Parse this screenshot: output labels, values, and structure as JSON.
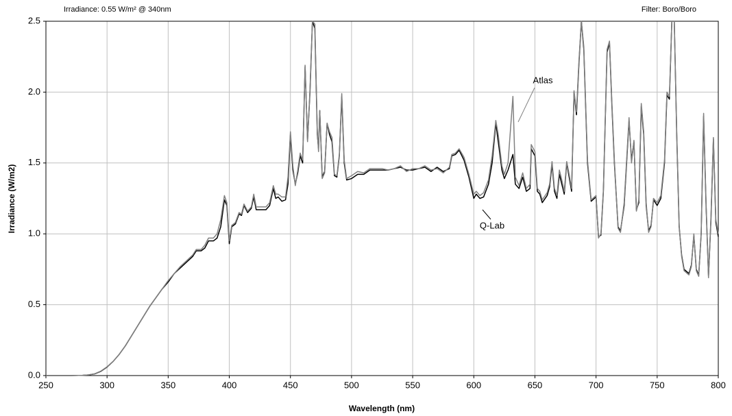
{
  "chart_data": {
    "type": "line",
    "annotations": [
      "Irradiance: 0.55 W/m² @ 340nm",
      "Filter: Boro/Boro"
    ],
    "xlabel": "Wavelength (nm)",
    "ylabel": "Irradiance (W/m2)",
    "xlim": [
      250,
      800
    ],
    "ylim": [
      0,
      2.5
    ],
    "xticks": [
      250,
      300,
      350,
      400,
      450,
      500,
      550,
      600,
      650,
      700,
      750,
      800
    ],
    "yticks": [
      {
        "value": 0,
        "label": "0.0"
      },
      0.5,
      {
        "value": 1,
        "label": "1.0"
      },
      1.5,
      {
        "value": 2,
        "label": "2.0"
      },
      2.5
    ],
    "grid": true,
    "x": [
      250,
      260,
      270,
      280,
      285,
      290,
      295,
      300,
      305,
      310,
      315,
      320,
      325,
      330,
      335,
      340,
      345,
      350,
      355,
      360,
      365,
      370,
      373,
      377,
      380,
      383,
      387,
      390,
      393,
      396,
      398,
      400,
      402,
      405,
      408,
      410,
      412,
      415,
      418,
      420,
      422,
      425,
      430,
      433,
      436,
      438,
      440,
      443,
      446,
      448,
      450,
      452,
      454,
      456,
      458,
      460,
      462,
      464,
      466,
      468,
      470,
      472,
      473,
      474,
      476,
      478,
      480,
      482,
      484,
      486,
      488,
      490,
      492,
      494,
      496,
      500,
      505,
      510,
      515,
      520,
      525,
      530,
      535,
      540,
      545,
      550,
      555,
      560,
      565,
      570,
      575,
      580,
      582,
      585,
      588,
      592,
      596,
      600,
      602,
      605,
      608,
      612,
      615,
      618,
      620,
      623,
      625,
      628,
      632,
      634,
      637,
      640,
      643,
      646,
      647,
      650,
      652,
      654,
      656,
      660,
      662,
      664,
      666,
      668,
      670,
      672,
      674,
      676,
      678,
      680,
      682,
      684,
      686,
      688,
      690,
      693,
      696,
      700,
      702,
      704,
      706,
      709,
      711,
      713,
      715,
      718,
      720,
      723,
      727,
      729,
      731,
      733,
      735,
      737,
      739,
      741,
      743,
      745,
      747,
      750,
      753,
      756,
      758,
      760,
      762,
      764,
      766,
      768,
      770,
      772,
      776,
      778,
      780,
      782,
      784,
      786,
      788,
      790,
      792,
      794,
      796,
      798,
      800
    ],
    "series": [
      {
        "name": "Q-Lab",
        "color": "#000000",
        "values": [
          0,
          0,
          0,
          0.002,
          0.005,
          0.012,
          0.03,
          0.06,
          0.1,
          0.15,
          0.21,
          0.28,
          0.35,
          0.42,
          0.49,
          0.55,
          0.61,
          0.66,
          0.72,
          0.76,
          0.8,
          0.84,
          0.88,
          0.88,
          0.9,
          0.95,
          0.95,
          0.97,
          1.05,
          1.24,
          1.2,
          0.93,
          1.05,
          1.07,
          1.14,
          1.13,
          1.2,
          1.15,
          1.18,
          1.26,
          1.17,
          1.17,
          1.17,
          1.2,
          1.32,
          1.25,
          1.26,
          1.23,
          1.24,
          1.35,
          1.7,
          1.45,
          1.35,
          1.43,
          1.55,
          1.5,
          2.18,
          1.66,
          2.0,
          2.5,
          2.45,
          1.7,
          1.6,
          1.87,
          1.4,
          1.44,
          1.78,
          1.7,
          1.65,
          1.41,
          1.4,
          1.55,
          1.97,
          1.5,
          1.38,
          1.39,
          1.42,
          1.42,
          1.45,
          1.45,
          1.45,
          1.45,
          1.46,
          1.47,
          1.45,
          1.45,
          1.46,
          1.47,
          1.44,
          1.47,
          1.44,
          1.46,
          1.55,
          1.56,
          1.59,
          1.52,
          1.4,
          1.25,
          1.28,
          1.25,
          1.26,
          1.35,
          1.5,
          1.78,
          1.65,
          1.45,
          1.39,
          1.45,
          1.56,
          1.35,
          1.32,
          1.4,
          1.3,
          1.32,
          1.6,
          1.55,
          1.3,
          1.28,
          1.22,
          1.27,
          1.33,
          1.49,
          1.3,
          1.25,
          1.42,
          1.35,
          1.28,
          1.5,
          1.4,
          1.3,
          2.0,
          1.84,
          2.2,
          2.5,
          2.3,
          1.5,
          1.23,
          1.26,
          0.98,
          0.99,
          1.3,
          2.28,
          2.35,
          1.9,
          1.5,
          1.05,
          1.02,
          1.2,
          1.8,
          1.52,
          1.65,
          1.17,
          1.22,
          1.9,
          1.7,
          1.2,
          1.02,
          1.06,
          1.24,
          1.2,
          1.25,
          1.5,
          1.98,
          1.95,
          2.5,
          2.5,
          1.7,
          1.05,
          0.85,
          0.75,
          0.72,
          0.78,
          0.99,
          0.75,
          0.71,
          1.0,
          1.83,
          1.2,
          0.7,
          1.1,
          1.67,
          1.08,
          0.98
        ]
      },
      {
        "name": "Atlas",
        "color": "#808080",
        "values": [
          0,
          0,
          0,
          0.002,
          0.005,
          0.013,
          0.032,
          0.062,
          0.1,
          0.15,
          0.21,
          0.28,
          0.35,
          0.42,
          0.49,
          0.55,
          0.61,
          0.67,
          0.72,
          0.77,
          0.81,
          0.85,
          0.89,
          0.89,
          0.92,
          0.97,
          0.97,
          1.0,
          1.1,
          1.27,
          1.22,
          0.95,
          1.06,
          1.08,
          1.15,
          1.14,
          1.21,
          1.16,
          1.19,
          1.28,
          1.19,
          1.19,
          1.19,
          1.22,
          1.34,
          1.28,
          1.28,
          1.26,
          1.26,
          1.4,
          1.72,
          1.48,
          1.34,
          1.45,
          1.57,
          1.52,
          2.19,
          1.65,
          2.02,
          2.5,
          2.48,
          1.72,
          1.58,
          1.87,
          1.39,
          1.43,
          1.78,
          1.72,
          1.68,
          1.42,
          1.41,
          1.56,
          1.99,
          1.52,
          1.39,
          1.41,
          1.44,
          1.43,
          1.46,
          1.46,
          1.46,
          1.45,
          1.46,
          1.48,
          1.44,
          1.46,
          1.46,
          1.48,
          1.45,
          1.46,
          1.43,
          1.47,
          1.56,
          1.57,
          1.6,
          1.54,
          1.42,
          1.28,
          1.3,
          1.27,
          1.29,
          1.38,
          1.55,
          1.8,
          1.7,
          1.48,
          1.42,
          1.5,
          1.97,
          1.4,
          1.34,
          1.43,
          1.32,
          1.35,
          1.63,
          1.58,
          1.32,
          1.3,
          1.24,
          1.29,
          1.35,
          1.51,
          1.32,
          1.27,
          1.45,
          1.38,
          1.3,
          1.51,
          1.42,
          1.32,
          2.01,
          1.86,
          2.22,
          2.5,
          2.32,
          1.52,
          1.24,
          1.27,
          0.97,
          1.0,
          1.31,
          2.3,
          2.36,
          1.92,
          1.52,
          1.04,
          1.01,
          1.22,
          1.82,
          1.5,
          1.66,
          1.16,
          1.24,
          1.92,
          1.72,
          1.22,
          1.01,
          1.05,
          1.25,
          1.22,
          1.27,
          1.52,
          2.0,
          1.97,
          2.5,
          2.5,
          1.72,
          1.06,
          0.84,
          0.74,
          0.71,
          0.77,
          1.0,
          0.74,
          0.7,
          1.01,
          1.85,
          1.22,
          0.69,
          1.12,
          1.68,
          1.1,
          1.0
        ]
      }
    ]
  }
}
